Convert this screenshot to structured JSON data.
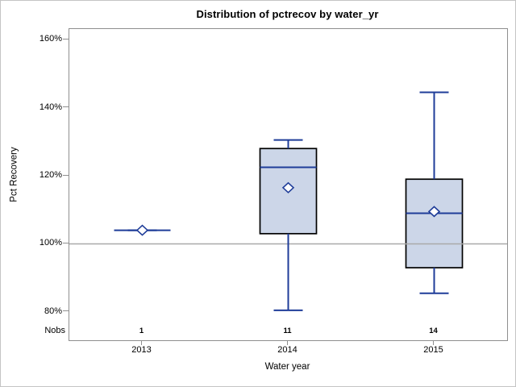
{
  "chart_data": {
    "type": "boxplot",
    "title": "Distribution of pctrecov by water_yr",
    "xlabel": "Water year",
    "ylabel": "Pct Recovery",
    "categories": [
      "2013",
      "2014",
      "2015"
    ],
    "nobs_label": "Nobs",
    "nobs": [
      "1",
      "11",
      "14"
    ],
    "series": [
      {
        "category": "2013",
        "min": 104,
        "q1": 104,
        "median": 104,
        "q3": 104,
        "max": 104,
        "mean": 104
      },
      {
        "category": "2014",
        "min": 80.5,
        "q1": 103,
        "median": 122.5,
        "q3": 128,
        "max": 130.5,
        "mean": 116.5
      },
      {
        "category": "2015",
        "min": 85.5,
        "q1": 93,
        "median": 109,
        "q3": 119,
        "max": 144.5,
        "mean": 109.5
      }
    ],
    "y_ticks": [
      80,
      100,
      120,
      140,
      160
    ],
    "y_tick_labels": [
      "80%",
      "100%",
      "120%",
      "140%",
      "160%"
    ],
    "ylim": [
      71.7,
      163.1
    ],
    "reference_line": 100,
    "grid": false,
    "legend": "none",
    "colors": {
      "box_fill": "#ccd6e8",
      "box_border": "#000000",
      "line": "#1f3d99",
      "mean_marker_fill": "#ffffff",
      "reference": "#a9a9a9",
      "axis": "#8f8f8f",
      "figure_border": "#c4c4c4",
      "text": "#000000"
    }
  }
}
